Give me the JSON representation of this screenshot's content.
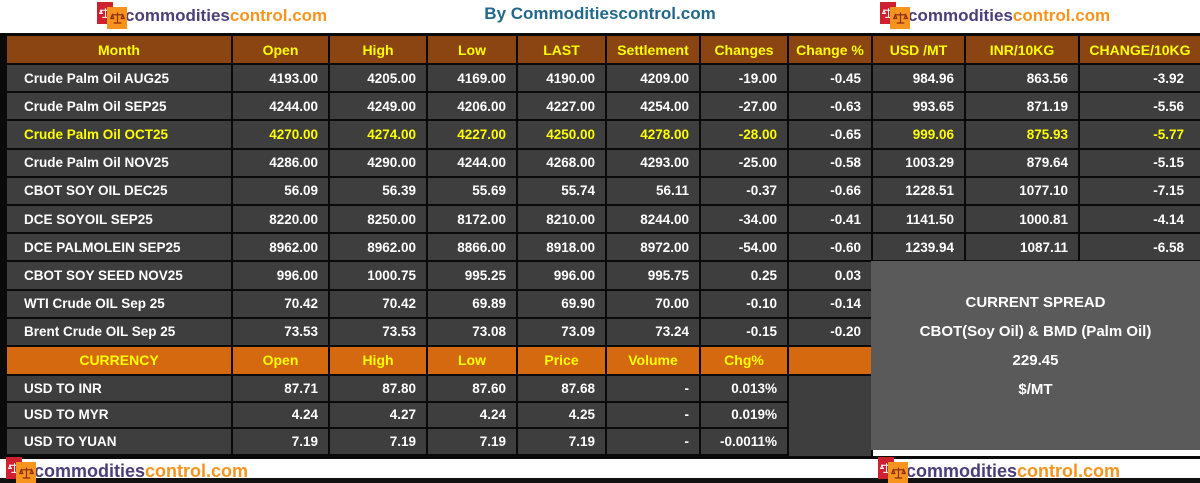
{
  "header": {
    "title": "By Commoditiescontrol.com",
    "logo": {
      "part1": "commodities",
      "part2": "control.com"
    }
  },
  "colors": {
    "table_header": "#8a4513",
    "currency_header": "#d4690f",
    "row_bg": "#3e3e3e",
    "spread_box": "#5a5a5a",
    "highlight_text": "#ffff00",
    "value_text": "#ffffff",
    "title_text": "#21688c",
    "logo_purple": "#4b3e79",
    "logo_orange": "#f7941d",
    "logo_red": "#cf2030"
  },
  "table": {
    "columns": [
      "Month",
      "Open",
      "High",
      "Low",
      "LAST",
      "Settlement",
      "Changes",
      "Change %",
      "USD /MT",
      "INR/10KG",
      "CHANGE/10KG"
    ],
    "rows": [
      {
        "month": "Crude Palm Oil AUG25",
        "values": [
          "4193.00",
          "4205.00",
          "4169.00",
          "4190.00",
          "4209.00",
          "-19.00",
          "-0.45",
          "984.96",
          "863.56",
          "-3.92"
        ],
        "highlight": false
      },
      {
        "month": "Crude Palm Oil SEP25",
        "values": [
          "4244.00",
          "4249.00",
          "4206.00",
          "4227.00",
          "4254.00",
          "-27.00",
          "-0.63",
          "993.65",
          "871.19",
          "-5.56"
        ],
        "highlight": false
      },
      {
        "month": "Crude Palm Oil OCT25",
        "values": [
          "4270.00",
          "4274.00",
          "4227.00",
          "4250.00",
          "4278.00",
          "-28.00",
          "-0.65",
          "999.06",
          "875.93",
          "-5.77"
        ],
        "highlight": true,
        "white_values": [
          6
        ]
      },
      {
        "month": "Crude Palm Oil NOV25",
        "values": [
          "4286.00",
          "4290.00",
          "4244.00",
          "4268.00",
          "4293.00",
          "-25.00",
          "-0.58",
          "1003.29",
          "879.64",
          "-5.15"
        ],
        "highlight": false
      },
      {
        "month": "CBOT SOY OIL DEC25",
        "values": [
          "56.09",
          "56.39",
          "55.69",
          "55.74",
          "56.11",
          "-0.37",
          "-0.66",
          "1228.51",
          "1077.10",
          "-7.15"
        ],
        "highlight": false
      },
      {
        "month": "DCE SOYOIL SEP25",
        "values": [
          "8220.00",
          "8250.00",
          "8172.00",
          "8210.00",
          "8244.00",
          "-34.00",
          "-0.41",
          "1141.50",
          "1000.81",
          "-4.14"
        ],
        "highlight": false
      },
      {
        "month": "DCE PALMOLEIN SEP25",
        "values": [
          "8962.00",
          "8962.00",
          "8866.00",
          "8918.00",
          "8972.00",
          "-54.00",
          "-0.60",
          "1239.94",
          "1087.11",
          "-6.58"
        ],
        "highlight": false
      },
      {
        "month": "CBOT SOY SEED NOV25",
        "values": [
          "996.00",
          "1000.75",
          "995.25",
          "996.00",
          "995.75",
          "0.25",
          "0.03"
        ],
        "highlight": false
      },
      {
        "month": "WTI Crude OIL Sep 25",
        "values": [
          "70.42",
          "70.42",
          "69.89",
          "69.90",
          "70.00",
          "-0.10",
          "-0.14"
        ],
        "highlight": false
      },
      {
        "month": "Brent Crude OIL Sep 25",
        "values": [
          "73.53",
          "73.53",
          "73.08",
          "73.09",
          "73.24",
          "-0.15",
          "-0.20"
        ],
        "highlight": false
      }
    ]
  },
  "currency": {
    "columns": [
      "CURRENCY",
      "Open",
      "High",
      "Low",
      "Price",
      "Volume",
      "Chg%",
      ""
    ],
    "rows": [
      {
        "pair": "USD TO INR",
        "values": [
          "87.71",
          "87.80",
          "87.60",
          "87.68",
          "-",
          "0.013%"
        ]
      },
      {
        "pair": "USD TO MYR",
        "values": [
          "4.24",
          "4.27",
          "4.24",
          "4.25",
          "-",
          "0.019%"
        ]
      },
      {
        "pair": "USD TO YUAN",
        "values": [
          "7.19",
          "7.19",
          "7.19",
          "7.19",
          "-",
          "-0.0011%"
        ]
      }
    ]
  },
  "spread": {
    "line1": "CURRENT SPREAD",
    "line2": "CBOT(Soy Oil) & BMD (Palm Oil)",
    "line3": "229.45",
    "line4": "$/MT"
  },
  "chart_data": [
    {
      "type": "table",
      "title": "By Commoditiescontrol.com",
      "columns": [
        "Month",
        "Open",
        "High",
        "Low",
        "LAST",
        "Settlement",
        "Changes",
        "Change %",
        "USD /MT",
        "INR/10KG",
        "CHANGE/10KG"
      ],
      "rows": [
        [
          "Crude Palm Oil AUG25",
          4193.0,
          4205.0,
          4169.0,
          4190.0,
          4209.0,
          -19.0,
          -0.45,
          984.96,
          863.56,
          -3.92
        ],
        [
          "Crude Palm Oil SEP25",
          4244.0,
          4249.0,
          4206.0,
          4227.0,
          4254.0,
          -27.0,
          -0.63,
          993.65,
          871.19,
          -5.56
        ],
        [
          "Crude Palm Oil OCT25",
          4270.0,
          4274.0,
          4227.0,
          4250.0,
          4278.0,
          -28.0,
          -0.65,
          999.06,
          875.93,
          -5.77
        ],
        [
          "Crude Palm Oil NOV25",
          4286.0,
          4290.0,
          4244.0,
          4268.0,
          4293.0,
          -25.0,
          -0.58,
          1003.29,
          879.64,
          -5.15
        ],
        [
          "CBOT SOY OIL DEC25",
          56.09,
          56.39,
          55.69,
          55.74,
          56.11,
          -0.37,
          -0.66,
          1228.51,
          1077.1,
          -7.15
        ],
        [
          "DCE SOYOIL SEP25",
          8220.0,
          8250.0,
          8172.0,
          8210.0,
          8244.0,
          -34.0,
          -0.41,
          1141.5,
          1000.81,
          -4.14
        ],
        [
          "DCE PALMOLEIN SEP25",
          8962.0,
          8962.0,
          8866.0,
          8918.0,
          8972.0,
          -54.0,
          -0.6,
          1239.94,
          1087.11,
          -6.58
        ],
        [
          "CBOT SOY SEED NOV25",
          996.0,
          1000.75,
          995.25,
          996.0,
          995.75,
          0.25,
          0.03,
          null,
          null,
          null
        ],
        [
          "WTI Crude OIL Sep 25",
          70.42,
          70.42,
          69.89,
          69.9,
          70.0,
          -0.1,
          -0.14,
          null,
          null,
          null
        ],
        [
          "Brent Crude OIL Sep 25",
          73.53,
          73.53,
          73.08,
          73.09,
          73.24,
          -0.15,
          -0.2,
          null,
          null,
          null
        ]
      ]
    },
    {
      "type": "table",
      "columns": [
        "CURRENCY",
        "Open",
        "High",
        "Low",
        "Price",
        "Volume",
        "Chg%"
      ],
      "rows": [
        [
          "USD TO INR",
          87.71,
          87.8,
          87.6,
          87.68,
          null,
          "0.013%"
        ],
        [
          "USD TO MYR",
          4.24,
          4.27,
          4.24,
          4.25,
          null,
          "0.019%"
        ],
        [
          "USD TO YUAN",
          7.19,
          7.19,
          7.19,
          7.19,
          null,
          "-0.0011%"
        ]
      ]
    },
    {
      "type": "table",
      "title": "CURRENT SPREAD",
      "rows": [
        [
          "CBOT(Soy Oil) & BMD (Palm Oil)",
          229.45,
          "$/MT"
        ]
      ]
    }
  ]
}
